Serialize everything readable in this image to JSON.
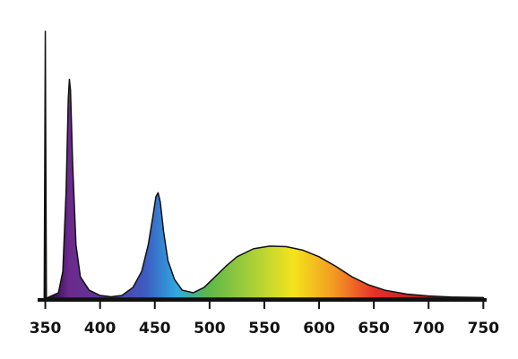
{
  "chart_data": {
    "type": "area",
    "x": [
      349,
      350,
      351,
      362,
      366,
      369,
      371,
      372,
      373,
      375,
      378,
      382,
      390,
      400,
      410,
      420,
      430,
      438,
      444,
      448,
      451,
      453,
      455,
      458,
      462,
      468,
      475,
      485,
      495,
      505,
      515,
      525,
      540,
      555,
      570,
      585,
      600,
      615,
      630,
      645,
      660,
      680,
      700,
      720,
      750
    ],
    "values": [
      0,
      100,
      0,
      2,
      10,
      40,
      75,
      82,
      78,
      50,
      20,
      8,
      3,
      1,
      0.5,
      1,
      4,
      10,
      20,
      30,
      38,
      39.5,
      36,
      25,
      14,
      7,
      3,
      2,
      4,
      8,
      12,
      15.5,
      18.5,
      19.5,
      19.3,
      18,
      15.5,
      12,
      8,
      5,
      3,
      1.5,
      0.8,
      0.4,
      0.2
    ],
    "xlim": [
      343,
      753
    ],
    "ylim": [
      0,
      100
    ],
    "xticks": [
      350,
      400,
      450,
      500,
      550,
      600,
      650,
      700,
      750
    ]
  }
}
